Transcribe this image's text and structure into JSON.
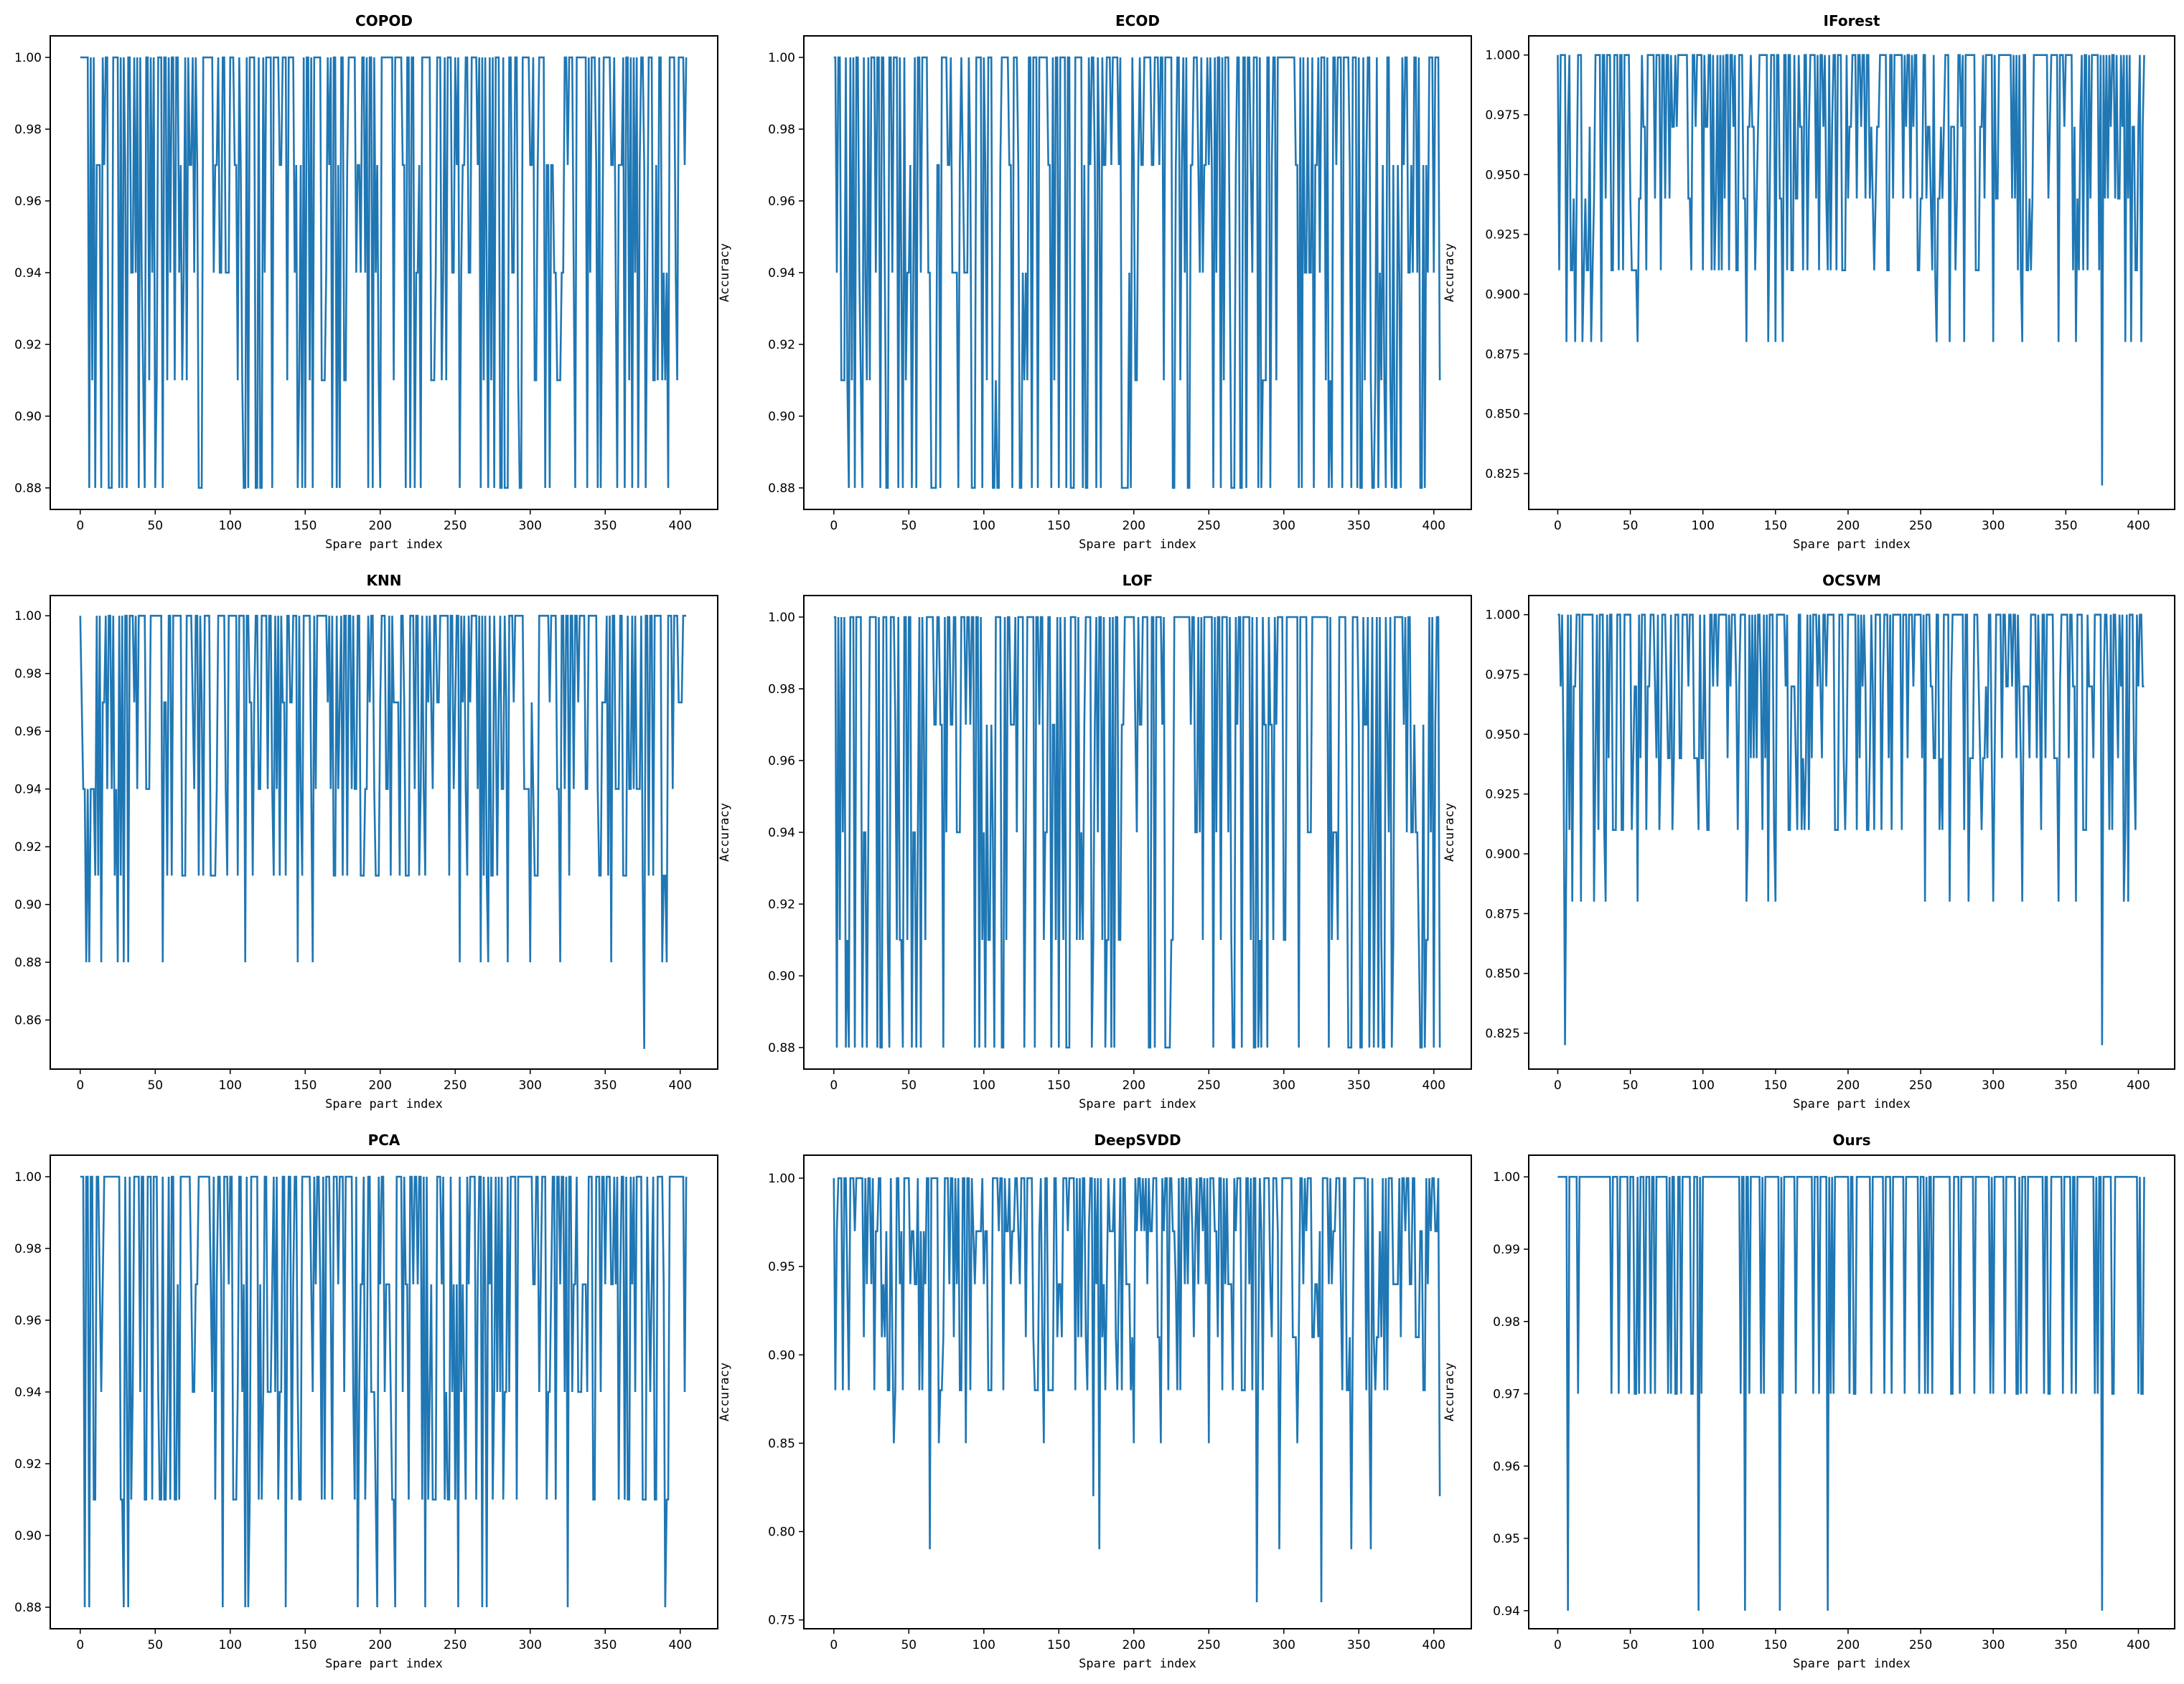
{
  "chart_data": [
    {
      "type": "line",
      "title": "COPOD",
      "xlabel": "Spare part index",
      "ylabel": "Accuracy",
      "xlim": [
        -20,
        425
      ],
      "ylim": [
        0.874,
        1.006
      ],
      "xticks": [
        "0",
        "50",
        "100",
        "150",
        "200",
        "250",
        "300",
        "350",
        "400"
      ],
      "yticks": [
        "0.88",
        "0.90",
        "0.92",
        "0.94",
        "0.96",
        "0.98",
        "1.00"
      ],
      "levels": [
        0.88,
        0.91,
        0.94,
        0.97,
        1.0
      ],
      "pattern": "mixed",
      "seed": 11,
      "n": 405,
      "color": "#1f77b4",
      "dips": [
        {
          "x": 10,
          "y": 0.88
        },
        {
          "x": 14,
          "y": 0.88
        },
        {
          "x": 19,
          "y": 0.88
        },
        {
          "x": 31,
          "y": 0.88
        },
        {
          "x": 55,
          "y": 0.88
        },
        {
          "x": 145,
          "y": 0.88
        },
        {
          "x": 150,
          "y": 0.88
        },
        {
          "x": 155,
          "y": 0.88
        },
        {
          "x": 253,
          "y": 0.88
        },
        {
          "x": 267,
          "y": 0.88
        },
        {
          "x": 272,
          "y": 0.88
        },
        {
          "x": 285,
          "y": 0.88
        },
        {
          "x": 310,
          "y": 0.88
        },
        {
          "x": 330,
          "y": 0.88
        },
        {
          "x": 345,
          "y": 0.88
        },
        {
          "x": 363,
          "y": 0.88
        },
        {
          "x": 372,
          "y": 0.88
        },
        {
          "x": 392,
          "y": 0.88
        }
      ]
    },
    {
      "type": "line",
      "title": "ECOD",
      "xlabel": "Spare part index",
      "ylabel": "Accuracy",
      "xlim": [
        -20,
        425
      ],
      "ylim": [
        0.874,
        1.006
      ],
      "xticks": [
        "0",
        "50",
        "100",
        "150",
        "200",
        "250",
        "300",
        "350",
        "400"
      ],
      "yticks": [
        "0.88",
        "0.90",
        "0.92",
        "0.94",
        "0.96",
        "0.98",
        "1.00"
      ],
      "levels": [
        0.88,
        0.91,
        0.94,
        0.97,
        1.0
      ],
      "pattern": "mixed",
      "seed": 23,
      "n": 405,
      "color": "#1f77b4",
      "dips": [
        {
          "x": 10,
          "y": 0.88
        },
        {
          "x": 14,
          "y": 0.88
        },
        {
          "x": 19,
          "y": 0.88
        },
        {
          "x": 31,
          "y": 0.88
        },
        {
          "x": 55,
          "y": 0.88
        },
        {
          "x": 145,
          "y": 0.88
        },
        {
          "x": 150,
          "y": 0.88
        },
        {
          "x": 155,
          "y": 0.88
        },
        {
          "x": 253,
          "y": 0.88
        },
        {
          "x": 267,
          "y": 0.88
        },
        {
          "x": 272,
          "y": 0.88
        },
        {
          "x": 285,
          "y": 0.88
        },
        {
          "x": 310,
          "y": 0.88
        },
        {
          "x": 330,
          "y": 0.88
        },
        {
          "x": 345,
          "y": 0.88
        },
        {
          "x": 363,
          "y": 0.88
        },
        {
          "x": 372,
          "y": 0.88
        },
        {
          "x": 392,
          "y": 0.88
        }
      ]
    },
    {
      "type": "line",
      "title": "IForest",
      "xlabel": "Spare part index",
      "ylabel": "Accuracy",
      "xlim": [
        -20,
        425
      ],
      "ylim": [
        0.81,
        1.008
      ],
      "xticks": [
        "0",
        "50",
        "100",
        "150",
        "200",
        "250",
        "300",
        "350",
        "400"
      ],
      "yticks": [
        "0.825",
        "0.850",
        "0.875",
        "0.900",
        "0.925",
        "0.950",
        "0.975",
        "1.000"
      ],
      "levels": [
        0.91,
        0.94,
        0.97,
        1.0
      ],
      "pattern": "mixed",
      "seed": 37,
      "n": 405,
      "color": "#1f77b4",
      "dips": [
        {
          "x": 6,
          "y": 0.88
        },
        {
          "x": 12,
          "y": 0.88
        },
        {
          "x": 17,
          "y": 0.88
        },
        {
          "x": 23,
          "y": 0.88
        },
        {
          "x": 30,
          "y": 0.88
        },
        {
          "x": 55,
          "y": 0.88
        },
        {
          "x": 130,
          "y": 0.88
        },
        {
          "x": 145,
          "y": 0.88
        },
        {
          "x": 150,
          "y": 0.88
        },
        {
          "x": 155,
          "y": 0.88
        },
        {
          "x": 261,
          "y": 0.88
        },
        {
          "x": 270,
          "y": 0.88
        },
        {
          "x": 280,
          "y": 0.88
        },
        {
          "x": 300,
          "y": 0.88
        },
        {
          "x": 320,
          "y": 0.88
        },
        {
          "x": 345,
          "y": 0.88
        },
        {
          "x": 357,
          "y": 0.88
        },
        {
          "x": 375,
          "y": 0.82
        },
        {
          "x": 391,
          "y": 0.88
        },
        {
          "x": 395,
          "y": 0.88
        },
        {
          "x": 402,
          "y": 0.88
        }
      ]
    },
    {
      "type": "line",
      "title": "KNN",
      "xlabel": "Spare part index",
      "ylabel": "Accuracy",
      "xlim": [
        -20,
        425
      ],
      "ylim": [
        0.843,
        1.007
      ],
      "xticks": [
        "0",
        "50",
        "100",
        "150",
        "200",
        "250",
        "300",
        "350",
        "400"
      ],
      "yticks": [
        "0.86",
        "0.88",
        "0.90",
        "0.92",
        "0.94",
        "0.96",
        "0.98",
        "1.00"
      ],
      "levels": [
        0.91,
        0.94,
        0.97,
        1.0
      ],
      "pattern": "mixed",
      "seed": 51,
      "n": 405,
      "color": "#1f77b4",
      "dips": [
        {
          "x": 4,
          "y": 0.88
        },
        {
          "x": 6,
          "y": 0.88
        },
        {
          "x": 14,
          "y": 0.88
        },
        {
          "x": 25,
          "y": 0.88
        },
        {
          "x": 29,
          "y": 0.88
        },
        {
          "x": 32,
          "y": 0.88
        },
        {
          "x": 55,
          "y": 0.88
        },
        {
          "x": 110,
          "y": 0.88
        },
        {
          "x": 145,
          "y": 0.88
        },
        {
          "x": 155,
          "y": 0.88
        },
        {
          "x": 253,
          "y": 0.88
        },
        {
          "x": 267,
          "y": 0.88
        },
        {
          "x": 272,
          "y": 0.88
        },
        {
          "x": 285,
          "y": 0.88
        },
        {
          "x": 300,
          "y": 0.88
        },
        {
          "x": 320,
          "y": 0.88
        },
        {
          "x": 354,
          "y": 0.88
        },
        {
          "x": 376,
          "y": 0.85
        },
        {
          "x": 388,
          "y": 0.88
        },
        {
          "x": 391,
          "y": 0.88
        }
      ]
    },
    {
      "type": "line",
      "title": "LOF",
      "xlabel": "Spare part index",
      "ylabel": "Accuracy",
      "xlim": [
        -20,
        425
      ],
      "ylim": [
        0.874,
        1.006
      ],
      "xticks": [
        "0",
        "50",
        "100",
        "150",
        "200",
        "250",
        "300",
        "350",
        "400"
      ],
      "yticks": [
        "0.88",
        "0.90",
        "0.92",
        "0.94",
        "0.96",
        "0.98",
        "1.00"
      ],
      "levels": [
        0.88,
        0.91,
        0.94,
        0.97,
        1.0
      ],
      "pattern": "mixed",
      "seed": 67,
      "n": 405,
      "color": "#1f77b4",
      "dips": [
        {
          "x": 10,
          "y": 0.88
        },
        {
          "x": 14,
          "y": 0.88
        },
        {
          "x": 19,
          "y": 0.88
        },
        {
          "x": 31,
          "y": 0.88
        },
        {
          "x": 55,
          "y": 0.88
        },
        {
          "x": 145,
          "y": 0.88
        },
        {
          "x": 150,
          "y": 0.88
        },
        {
          "x": 155,
          "y": 0.88
        },
        {
          "x": 253,
          "y": 0.88
        },
        {
          "x": 267,
          "y": 0.88
        },
        {
          "x": 272,
          "y": 0.88
        },
        {
          "x": 285,
          "y": 0.88
        },
        {
          "x": 310,
          "y": 0.88
        },
        {
          "x": 330,
          "y": 0.88
        },
        {
          "x": 345,
          "y": 0.88
        },
        {
          "x": 363,
          "y": 0.88
        },
        {
          "x": 372,
          "y": 0.88
        },
        {
          "x": 392,
          "y": 0.88
        }
      ]
    },
    {
      "type": "line",
      "title": "OCSVM",
      "xlabel": "Spare part index",
      "ylabel": "Accuracy",
      "xlim": [
        -20,
        425
      ],
      "ylim": [
        0.81,
        1.008
      ],
      "xticks": [
        "0",
        "50",
        "100",
        "150",
        "200",
        "250",
        "300",
        "350",
        "400"
      ],
      "yticks": [
        "0.825",
        "0.850",
        "0.875",
        "0.900",
        "0.925",
        "0.950",
        "0.975",
        "1.000"
      ],
      "levels": [
        0.91,
        0.94,
        0.97,
        1.0
      ],
      "pattern": "mixed",
      "seed": 79,
      "n": 405,
      "color": "#1f77b4",
      "dips": [
        {
          "x": 5,
          "y": 0.82
        },
        {
          "x": 10,
          "y": 0.88
        },
        {
          "x": 16,
          "y": 0.88
        },
        {
          "x": 25,
          "y": 0.88
        },
        {
          "x": 33,
          "y": 0.88
        },
        {
          "x": 55,
          "y": 0.88
        },
        {
          "x": 130,
          "y": 0.88
        },
        {
          "x": 145,
          "y": 0.88
        },
        {
          "x": 150,
          "y": 0.88
        },
        {
          "x": 253,
          "y": 0.88
        },
        {
          "x": 270,
          "y": 0.88
        },
        {
          "x": 283,
          "y": 0.88
        },
        {
          "x": 300,
          "y": 0.88
        },
        {
          "x": 320,
          "y": 0.88
        },
        {
          "x": 345,
          "y": 0.88
        },
        {
          "x": 357,
          "y": 0.88
        },
        {
          "x": 375,
          "y": 0.82
        },
        {
          "x": 390,
          "y": 0.88
        },
        {
          "x": 393,
          "y": 0.88
        }
      ]
    },
    {
      "type": "line",
      "title": "PCA",
      "xlabel": "Spare part index",
      "ylabel": "Accuracy",
      "xlim": [
        -20,
        425
      ],
      "ylim": [
        0.874,
        1.006
      ],
      "xticks": [
        "0",
        "50",
        "100",
        "150",
        "200",
        "250",
        "300",
        "350",
        "400"
      ],
      "yticks": [
        "0.88",
        "0.90",
        "0.92",
        "0.94",
        "0.96",
        "0.98",
        "1.00"
      ],
      "levels": [
        0.91,
        0.94,
        0.97,
        1.0
      ],
      "pattern": "mixed",
      "seed": 97,
      "n": 405,
      "color": "#1f77b4",
      "dips": [
        {
          "x": 3,
          "y": 0.88
        },
        {
          "x": 6,
          "y": 0.88
        },
        {
          "x": 29,
          "y": 0.88
        },
        {
          "x": 32,
          "y": 0.88
        },
        {
          "x": 95,
          "y": 0.88
        },
        {
          "x": 110,
          "y": 0.88
        },
        {
          "x": 112,
          "y": 0.88
        },
        {
          "x": 137,
          "y": 0.88
        },
        {
          "x": 185,
          "y": 0.88
        },
        {
          "x": 198,
          "y": 0.88
        },
        {
          "x": 210,
          "y": 0.88
        },
        {
          "x": 230,
          "y": 0.88
        },
        {
          "x": 252,
          "y": 0.88
        },
        {
          "x": 268,
          "y": 0.88
        },
        {
          "x": 271,
          "y": 0.88
        },
        {
          "x": 325,
          "y": 0.88
        },
        {
          "x": 390,
          "y": 0.88
        }
      ]
    },
    {
      "type": "line",
      "title": "DeepSVDD",
      "xlabel": "Spare part index",
      "ylabel": "Accuracy",
      "xlim": [
        -20,
        425
      ],
      "ylim": [
        0.745,
        1.013
      ],
      "xticks": [
        "0",
        "50",
        "100",
        "150",
        "200",
        "250",
        "300",
        "350",
        "400"
      ],
      "yticks": [
        "0.75",
        "0.80",
        "0.85",
        "0.90",
        "0.95",
        "1.00"
      ],
      "levels": [
        0.88,
        0.91,
        0.94,
        0.97,
        1.0
      ],
      "pattern": "mixed",
      "seed": 113,
      "n": 405,
      "color": "#1f77b4",
      "dips": [
        {
          "x": 40,
          "y": 0.85
        },
        {
          "x": 64,
          "y": 0.79
        },
        {
          "x": 70,
          "y": 0.85
        },
        {
          "x": 88,
          "y": 0.85
        },
        {
          "x": 140,
          "y": 0.85
        },
        {
          "x": 173,
          "y": 0.82
        },
        {
          "x": 177,
          "y": 0.79
        },
        {
          "x": 200,
          "y": 0.85
        },
        {
          "x": 218,
          "y": 0.85
        },
        {
          "x": 250,
          "y": 0.85
        },
        {
          "x": 282,
          "y": 0.76
        },
        {
          "x": 297,
          "y": 0.79
        },
        {
          "x": 309,
          "y": 0.85
        },
        {
          "x": 325,
          "y": 0.76
        },
        {
          "x": 345,
          "y": 0.79
        },
        {
          "x": 358,
          "y": 0.79
        },
        {
          "x": 404,
          "y": 0.82
        }
      ]
    },
    {
      "type": "line",
      "title": "Ours",
      "xlabel": "Spare part index",
      "ylabel": "Accuracy",
      "xlim": [
        -20,
        425
      ],
      "ylim": [
        0.9375,
        1.003
      ],
      "xticks": [
        "0",
        "50",
        "100",
        "150",
        "200",
        "250",
        "300",
        "350",
        "400"
      ],
      "yticks": [
        "0.94",
        "0.95",
        "0.96",
        "0.97",
        "0.98",
        "0.99",
        "1.00"
      ],
      "levels": [
        0.97,
        1.0
      ],
      "pattern": "mostly_high",
      "seed": 131,
      "n": 405,
      "color": "#1f77b4",
      "dips": [
        {
          "x": 7,
          "y": 0.94
        },
        {
          "x": 97,
          "y": 0.94
        },
        {
          "x": 129,
          "y": 0.94
        },
        {
          "x": 153,
          "y": 0.94
        },
        {
          "x": 186,
          "y": 0.94
        },
        {
          "x": 375,
          "y": 0.94
        }
      ]
    }
  ]
}
